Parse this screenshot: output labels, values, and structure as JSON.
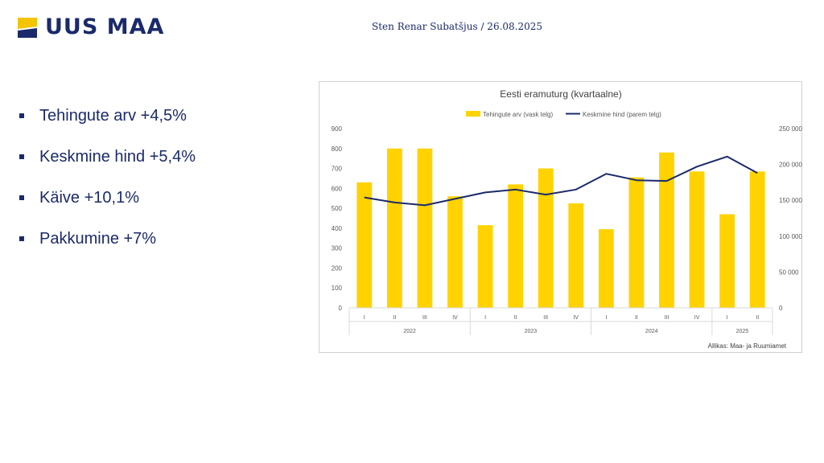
{
  "brand": {
    "name": "UUS MAA",
    "logo_colors": {
      "yellow": "#f5c400",
      "navy": "#1b2a6b"
    }
  },
  "header": {
    "author_line": "Sten Renar Subatšjus / 26.08.2025"
  },
  "bullets": [
    {
      "text": "Tehingute arv +4,5%"
    },
    {
      "text": "Keskmine hind +5,4%"
    },
    {
      "text": "Käive +10,1%"
    },
    {
      "text": "Pakkumine +7%"
    }
  ],
  "chart_data": {
    "type": "bar",
    "title": "Eesti eramuturg (kvartaalne)",
    "source": "Allikas: Maa- ja Ruumiamet",
    "categories": [
      "I",
      "II",
      "III",
      "IV",
      "I",
      "II",
      "III",
      "IV",
      "I",
      "II",
      "III",
      "IV",
      "I",
      "II"
    ],
    "groups": [
      {
        "label": "2022",
        "count": 4
      },
      {
        "label": "2023",
        "count": 4
      },
      {
        "label": "2024",
        "count": 4
      },
      {
        "label": "2025",
        "count": 2
      }
    ],
    "series": [
      {
        "name": "Tehingute arv (vask telg)",
        "type": "bar",
        "axis": "left",
        "color": "#ffd200",
        "values": [
          630,
          800,
          800,
          560,
          415,
          620,
          700,
          525,
          395,
          655,
          780,
          685,
          470,
          685
        ]
      },
      {
        "name": "Keskmine hind (parem telg)",
        "type": "line",
        "axis": "right",
        "color": "#1b2a6b",
        "values": [
          154000,
          147000,
          143000,
          152000,
          161000,
          165000,
          158000,
          165000,
          187000,
          178000,
          177000,
          197000,
          211000,
          188000
        ]
      }
    ],
    "yleft": {
      "min": 0,
      "max": 900,
      "ticks": [
        "0",
        "100",
        "200",
        "300",
        "400",
        "500",
        "600",
        "700",
        "800",
        "900"
      ]
    },
    "yright": {
      "min": 0,
      "max": 250000,
      "ticks": [
        "0",
        "50 000",
        "100 000",
        "150 000",
        "200 000",
        "250 000"
      ]
    },
    "legend": "top-center",
    "grid": false
  }
}
